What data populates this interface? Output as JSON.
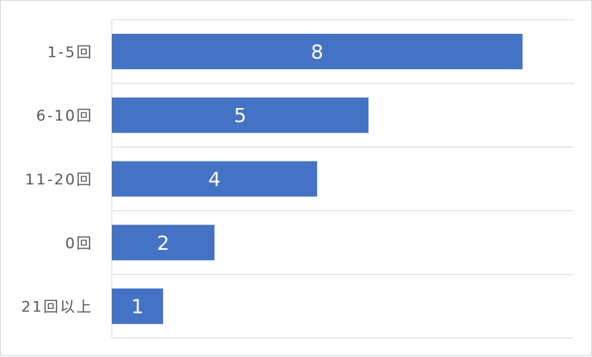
{
  "chart_data": {
    "type": "bar",
    "orientation": "horizontal",
    "categories": [
      "1-5回",
      "6-10回",
      "11-20回",
      "0回",
      "21回以上"
    ],
    "values": [
      8,
      5,
      4,
      2,
      1
    ],
    "xlim": [
      0,
      9
    ],
    "grid": true,
    "bar_color": "#4472C4",
    "gridline_color": "#d9d9d9",
    "data_labels": true
  }
}
